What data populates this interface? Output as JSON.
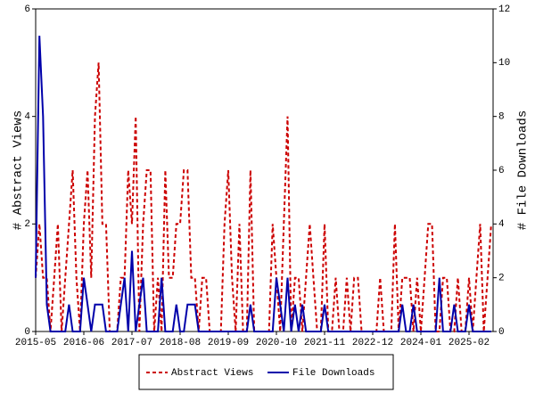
{
  "chart_data": {
    "type": "line",
    "y_label": "# Abstract Views",
    "y2_label": "# File Downloads",
    "categories": [
      "2015-05",
      null,
      null,
      null,
      null,
      null,
      null,
      null,
      null,
      null,
      null,
      null,
      null,
      "2016-06",
      null,
      null,
      null,
      null,
      null,
      null,
      null,
      null,
      null,
      null,
      null,
      null,
      "2017-07",
      null,
      null,
      null,
      null,
      null,
      null,
      null,
      null,
      null,
      null,
      null,
      null,
      "2018-08",
      null,
      null,
      null,
      null,
      null,
      null,
      null,
      null,
      null,
      null,
      null,
      null,
      "2019-09",
      null,
      null,
      null,
      null,
      null,
      null,
      null,
      null,
      null,
      null,
      null,
      null,
      "2020-10",
      null,
      null,
      null,
      null,
      null,
      null,
      null,
      null,
      null,
      null,
      null,
      null,
      "2021-11",
      null,
      null,
      null,
      null,
      null,
      null,
      null,
      null,
      null,
      null,
      null,
      null,
      "2022-12",
      null,
      null,
      null,
      null,
      null,
      null,
      null,
      null,
      null,
      null,
      null,
      null,
      "2024-01",
      null,
      null,
      null,
      null,
      null,
      null,
      null,
      null,
      null,
      null,
      null,
      null,
      "2025-02",
      null,
      null,
      null,
      null,
      null,
      null
    ],
    "series": [
      {
        "name": "Abstract Views",
        "color": "#cc0000",
        "dashed": true,
        "values": [
          1,
          2,
          1,
          1,
          0,
          1,
          2,
          0,
          1,
          2,
          3,
          1,
          0,
          2,
          3,
          1,
          4,
          5,
          2,
          2,
          0,
          0,
          0,
          1,
          1,
          3,
          2,
          4,
          0,
          2,
          3,
          3,
          0,
          1,
          0,
          3,
          1,
          1,
          2,
          2,
          3,
          3,
          1,
          1,
          0,
          1,
          1,
          0,
          0,
          0,
          0,
          2,
          3,
          1,
          0,
          2,
          0,
          0,
          3,
          0,
          0,
          0,
          0,
          0,
          2,
          1,
          0,
          2,
          4,
          0,
          1,
          1,
          0,
          1,
          2,
          1,
          0,
          0,
          2,
          0,
          0,
          1,
          0,
          0,
          1,
          0,
          1,
          1,
          0,
          0,
          0,
          0,
          0,
          1,
          0,
          0,
          0,
          2,
          0,
          1,
          1,
          1,
          0,
          1,
          0,
          1,
          2,
          2,
          0,
          0,
          1,
          1,
          0,
          0,
          1,
          0,
          0,
          1,
          0,
          1,
          2,
          0,
          1,
          2
        ]
      },
      {
        "name": "File Downloads",
        "color": "#0000aa",
        "dashed": false,
        "axis": "y2",
        "values": [
          2,
          11,
          8,
          1,
          0,
          0,
          0,
          0,
          0,
          1,
          0,
          0,
          0,
          2,
          1,
          0,
          1,
          1,
          1,
          0,
          0,
          0,
          0,
          1,
          2,
          0,
          3,
          0,
          1,
          2,
          0,
          0,
          0,
          0,
          2,
          0,
          0,
          0,
          1,
          0,
          0,
          1,
          1,
          1,
          0,
          0,
          0,
          0,
          0,
          0,
          0,
          0,
          0,
          0,
          0,
          0,
          0,
          0,
          1,
          0,
          0,
          0,
          0,
          0,
          0,
          2,
          1,
          0,
          2,
          0,
          1,
          0,
          1,
          0,
          0,
          0,
          0,
          0,
          1,
          0,
          0,
          0,
          0,
          0,
          0,
          0,
          0,
          0,
          0,
          0,
          0,
          0,
          0,
          0,
          0,
          0,
          0,
          0,
          0,
          1,
          0,
          0,
          1,
          0,
          0,
          0,
          0,
          0,
          0,
          2,
          0,
          0,
          0,
          1,
          0,
          0,
          0,
          1,
          0,
          0,
          0,
          0,
          0,
          0
        ]
      }
    ],
    "ylim": [
      0,
      6
    ],
    "yticks": [
      0,
      2,
      4,
      6
    ],
    "y2lim": [
      0,
      12
    ],
    "y2ticks": [
      0,
      2,
      4,
      6,
      8,
      10,
      12
    ],
    "legend": "bottom"
  }
}
